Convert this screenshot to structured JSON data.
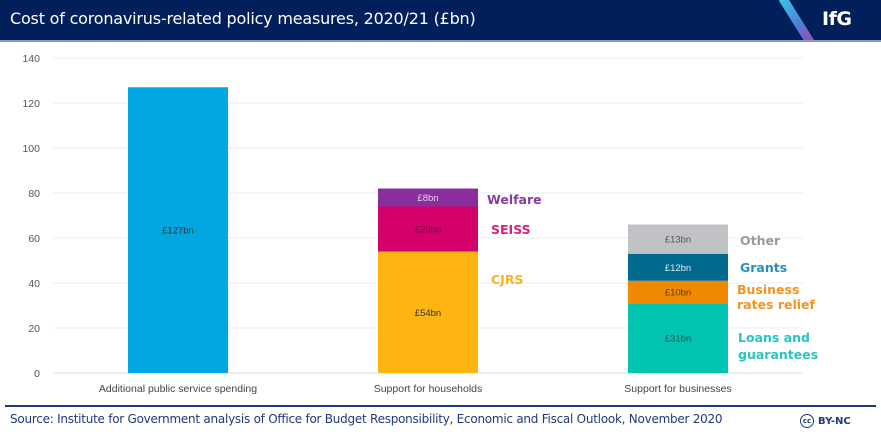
{
  "header": {
    "title": "Cost of coronavirus-related policy measures, 2020/21 (£bn)",
    "logo": "IfG"
  },
  "footer": {
    "source": "Source: Institute for Government analysis of Office for Budget Responsibility, Economic and Fiscal Outlook, November 2020",
    "license_icon": "cc-icon",
    "license_icon_text": "cc",
    "license": "BY-NC"
  },
  "chart_data": {
    "type": "bar",
    "stacked": true,
    "title": "Cost of coronavirus-related policy measures, 2020/21 (£bn)",
    "xlabel": "",
    "ylabel": "",
    "ylim": [
      0,
      140
    ],
    "yticks": [
      0,
      20,
      40,
      60,
      80,
      100,
      120,
      140
    ],
    "grid": true,
    "legend": "inline-right-of-bars",
    "categories": [
      "Additional public service spending",
      "Support for households",
      "Support for businesses"
    ],
    "stacks": [
      {
        "category": "Additional public service spending",
        "segments": [
          {
            "name": "",
            "value": 127,
            "label": "£127bn",
            "color": "#00a7e1",
            "text_color": "#333333"
          }
        ]
      },
      {
        "category": "Support for households",
        "segments": [
          {
            "name": "CJRS",
            "value": 54,
            "label": "£54bn",
            "color": "#ffb511",
            "text_color": "#333333",
            "legend_color": "#f9b224"
          },
          {
            "name": "SEISS",
            "value": 20,
            "label": "£20bn",
            "color": "#d4006c",
            "text_color": "#7a0040",
            "legend_color": "#d9207a"
          },
          {
            "name": "Welfare",
            "value": 8,
            "label": "£8bn",
            "color": "#8a2e9e",
            "text_color": "#e6d0ec",
            "legend_color": "#8a3aa0"
          }
        ]
      },
      {
        "category": "Support for businesses",
        "segments": [
          {
            "name": "Loans and guarantees",
            "value": 31,
            "label": "£31bn",
            "color": "#00c3b2",
            "text_color": "#1f5a55",
            "legend_color": "#27c6c0"
          },
          {
            "name": "Business rates relief",
            "value": 10,
            "label": "£10bn",
            "color": "#ef8a00",
            "text_color": "#6b3a00",
            "legend_color": "#f39323"
          },
          {
            "name": "Grants",
            "value": 12,
            "label": "£12bn",
            "color": "#006b8f",
            "text_color": "#d5ecf4",
            "legend_color": "#2a8fbf"
          },
          {
            "name": "Other",
            "value": 13,
            "label": "£13bn",
            "color": "#c0c2c5",
            "text_color": "#555555",
            "legend_color": "#9a9a9a"
          }
        ]
      }
    ],
    "totals": [
      127,
      82,
      66
    ]
  }
}
